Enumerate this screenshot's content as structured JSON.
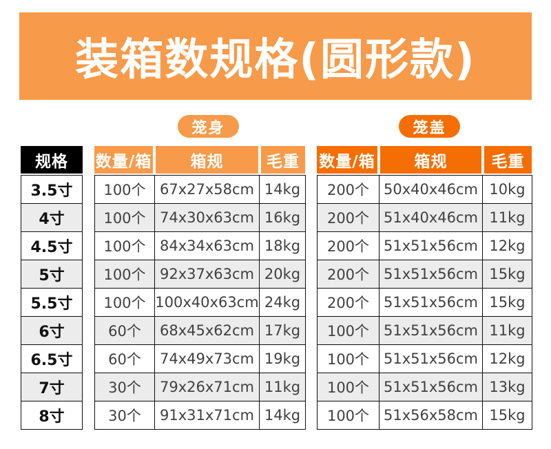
{
  "title": "装箱数规格(圆形款)",
  "badges": {
    "body_label": "笼身",
    "cover_label": "笼盖"
  },
  "spec_column": {
    "header": "规格",
    "sizes": [
      "3.5寸",
      "4寸",
      "4.5寸",
      "5寸",
      "5.5寸",
      "6寸",
      "6.5寸",
      "7寸",
      "8寸"
    ]
  },
  "body_table": {
    "headers": [
      "数量/箱",
      "箱规",
      "毛重"
    ],
    "rows": [
      [
        "100个",
        "67x27x58cm",
        "14kg"
      ],
      [
        "100个",
        "74x30x63cm",
        "16kg"
      ],
      [
        "100个",
        "84x34x63cm",
        "18kg"
      ],
      [
        "100个",
        "92x37x63cm",
        "20kg"
      ],
      [
        "100个",
        "100x40x63cm",
        "24kg"
      ],
      [
        "60个",
        "68x45x62cm",
        "17kg"
      ],
      [
        "60个",
        "74x49x73cm",
        "19kg"
      ],
      [
        "30个",
        "79x26x71cm",
        "11kg"
      ],
      [
        "30个",
        "91x31x71cm",
        "14kg"
      ]
    ]
  },
  "cover_table": {
    "headers": [
      "数量/箱",
      "箱规",
      "毛重"
    ],
    "rows": [
      [
        "200个",
        "50x40x46cm",
        "10kg"
      ],
      [
        "200个",
        "51x40x46cm",
        "11kg"
      ],
      [
        "200个",
        "51x51x56cm",
        "12kg"
      ],
      [
        "200个",
        "51x51x56cm",
        "15kg"
      ],
      [
        "200个",
        "51x51x56cm",
        "15kg"
      ],
      [
        "100个",
        "51x51x56cm",
        "11kg"
      ],
      [
        "100个",
        "51x51x56cm",
        "12kg"
      ],
      [
        "100个",
        "51x51x56cm",
        "13kg"
      ],
      [
        "100个",
        "51x56x58cm",
        "15kg"
      ]
    ]
  },
  "colors": {
    "light_orange": "#F79A49",
    "dark_orange": "#F56E03",
    "header_black": "#000000",
    "row_alt_gray": "#ECECEC",
    "body_text": "#404040"
  }
}
